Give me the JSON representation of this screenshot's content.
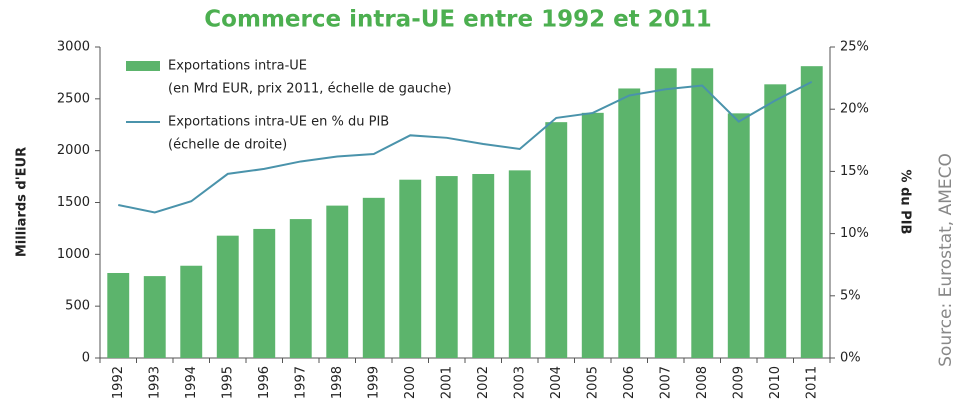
{
  "chart_data": {
    "type": "bar_line",
    "title": "Commerce intra-UE entre 1992 et 2011",
    "ylabel": "Milliards d'EUR",
    "y2label": "% du PIB",
    "source": "Source: Eurostat, AMECO",
    "categories": [
      "1992",
      "1993",
      "1994",
      "1995",
      "1996",
      "1997",
      "1998",
      "1999",
      "2000",
      "2001",
      "2002",
      "2003",
      "2004",
      "2005",
      "2006",
      "2007",
      "2008",
      "2009",
      "2010",
      "2011"
    ],
    "series": [
      {
        "name": "Exportations intra-UE",
        "legend_note": "(en Mrd EUR, prix 2011, échelle de gauche)",
        "type": "bar",
        "color": "#5cb46c",
        "values": [
          820,
          790,
          890,
          1180,
          1245,
          1340,
          1470,
          1545,
          1720,
          1755,
          1775,
          1810,
          2275,
          2365,
          2600,
          2795,
          2795,
          2360,
          2640,
          2815
        ]
      },
      {
        "name": "Exportations intra-UE en % du PIB",
        "legend_note": "(échelle de droite)",
        "type": "line",
        "axis": "y2",
        "color": "#4a93ab",
        "values": [
          12.3,
          11.7,
          12.6,
          14.8,
          15.2,
          15.8,
          16.2,
          16.4,
          17.9,
          17.7,
          17.2,
          16.8,
          19.3,
          19.7,
          21.1,
          21.6,
          21.9,
          19.0,
          20.7,
          22.2
        ]
      }
    ],
    "ylim": [
      0,
      3000
    ],
    "yticks": [
      0,
      500,
      1000,
      1500,
      2000,
      2500,
      3000
    ],
    "y2lim": [
      0,
      25
    ],
    "y2ticks": [
      {
        "value": 0,
        "label": "0%"
      },
      {
        "value": 5,
        "label": "5%"
      },
      {
        "value": 10,
        "label": "10%"
      },
      {
        "value": 15,
        "label": "15%"
      },
      {
        "value": 20,
        "label": "20%"
      },
      {
        "value": 25,
        "label": "25%"
      }
    ],
    "grid": false
  }
}
